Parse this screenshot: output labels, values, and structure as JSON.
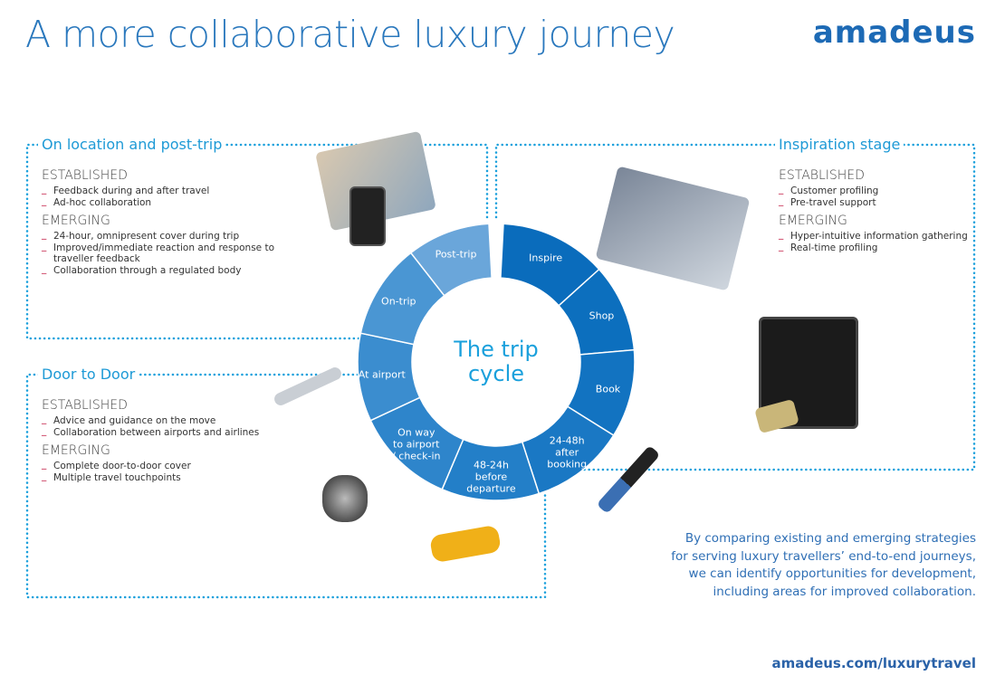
{
  "title": "A more collaborative luxury journey",
  "logo": "amadeus",
  "sections": {
    "post_trip": {
      "heading": "On location and post-trip",
      "established_label": "ESTABLISHED",
      "established": [
        "Feedback during and after travel",
        "Ad-hoc collaboration"
      ],
      "emerging_label": "EMERGING",
      "emerging": [
        "24-hour, omnipresent cover during trip",
        "Improved/immediate reaction and response to traveller feedback",
        "Collaboration through a regulated body"
      ]
    },
    "inspiration": {
      "heading": "Inspiration stage",
      "established_label": "ESTABLISHED",
      "established": [
        "Customer profiling",
        "Pre-travel support"
      ],
      "emerging_label": "EMERGING",
      "emerging": [
        "Hyper-intuitive information gathering",
        "Real-time profiling"
      ]
    },
    "door_to_door": {
      "heading": "Door to Door",
      "established_label": "ESTABLISHED",
      "established": [
        "Advice and guidance on the move",
        "Collaboration between airports and airlines"
      ],
      "emerging_label": "EMERGING",
      "emerging": [
        "Complete door-to-door cover",
        "Multiple travel touchpoints"
      ]
    }
  },
  "cycle": {
    "center": "The trip\ncycle",
    "segments": [
      {
        "label": "Inspire",
        "color": "#0a6cbc"
      },
      {
        "label": "Shop",
        "color": "#0c6fbe"
      },
      {
        "label": "Book",
        "color": "#1273c1"
      },
      {
        "label": "24-48h\nafter\nbooking",
        "color": "#1a78c4"
      },
      {
        "label": "48-24h\nbefore\ndeparture",
        "color": "#237fc8"
      },
      {
        "label": "On way\nto airport\n/ check-in",
        "color": "#2e85cb"
      },
      {
        "label": "At airport",
        "color": "#3b8dcf"
      },
      {
        "label": "On-trip",
        "color": "#4a96d3"
      },
      {
        "label": "Post-trip",
        "color": "#6aa6da"
      }
    ]
  },
  "summary": "By comparing existing and emerging strategies\nfor serving luxury travellers’ end-to-end journeys,\nwe can identify opportunities for development,\nincluding areas for improved collaboration.",
  "link": "amadeus.com/luxurytravel",
  "colors": {
    "accent": "#1e9ad6",
    "brand": "#1d6ab5",
    "bullet": "#c0143c"
  }
}
